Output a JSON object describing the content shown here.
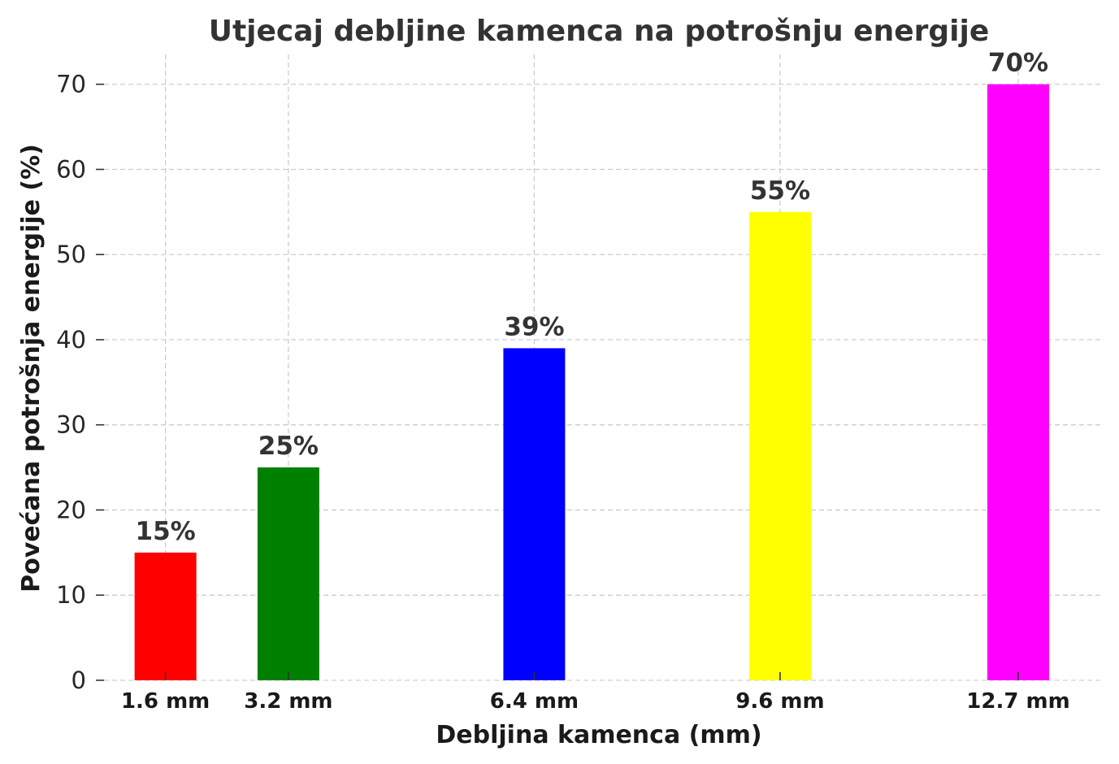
{
  "chart_data": {
    "type": "bar",
    "title": "Utjecaj debljine kamenca na potrošnju energije",
    "xlabel": "Debljina kamenca (mm)",
    "ylabel": "Povećana potrošnja energije (%)",
    "categories": [
      "1.6 mm",
      "3.2 mm",
      "6.4 mm",
      "9.6 mm",
      "12.7 mm"
    ],
    "x": [
      1.6,
      3.2,
      6.4,
      9.6,
      12.7
    ],
    "values": [
      15,
      25,
      39,
      55,
      70
    ],
    "data_labels": [
      "15%",
      "25%",
      "39%",
      "55%",
      "70%"
    ],
    "colors": [
      "#ff0000",
      "#008000",
      "#0000ff",
      "#ffff00",
      "#ff00ff"
    ],
    "yticks": [
      0,
      10,
      20,
      30,
      40,
      50,
      60,
      70
    ],
    "ylim": [
      0,
      73.5
    ],
    "xlim": [
      0.8,
      13.8
    ],
    "grid": true
  }
}
